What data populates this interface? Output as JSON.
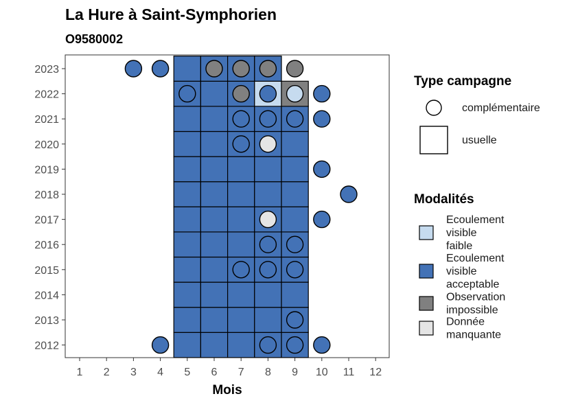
{
  "chart_data": {
    "type": "heatmap",
    "title": "La Hure à Saint-Symphorien",
    "subtitle": "O9580002",
    "xlabel": "Mois",
    "ylabel": "",
    "x_ticks": [
      "1",
      "2",
      "3",
      "4",
      "5",
      "6",
      "7",
      "8",
      "9",
      "10",
      "11",
      "12"
    ],
    "y_ticks": [
      "2012",
      "2013",
      "2014",
      "2015",
      "2016",
      "2017",
      "2018",
      "2019",
      "2020",
      "2021",
      "2022",
      "2023"
    ],
    "grid": false,
    "legend_position": "right",
    "colors": {
      "faible": "#c6dbef",
      "acceptable": "#4372b6",
      "impossible": "#808080",
      "manquante": "#e5e5e5"
    },
    "legend_type": {
      "title": "Type campagne",
      "items": [
        {
          "label": "complémentaire",
          "shape": "circle"
        },
        {
          "label": "usuelle",
          "shape": "square"
        }
      ]
    },
    "legend_modalites": {
      "title": "Modalités",
      "items": [
        {
          "key": "faible",
          "lines": [
            "Ecoulement",
            "visible",
            "faible"
          ]
        },
        {
          "key": "acceptable",
          "lines": [
            "Ecoulement",
            "visible",
            "acceptable"
          ]
        },
        {
          "key": "impossible",
          "lines": [
            "Observation",
            "impossible"
          ]
        },
        {
          "key": "manquante",
          "lines": [
            "Donnée",
            "manquante"
          ]
        }
      ]
    },
    "usuelle": [
      {
        "year": 2012,
        "month": 5,
        "mod": "acceptable"
      },
      {
        "year": 2012,
        "month": 6,
        "mod": "acceptable"
      },
      {
        "year": 2012,
        "month": 7,
        "mod": "acceptable"
      },
      {
        "year": 2012,
        "month": 8,
        "mod": "acceptable"
      },
      {
        "year": 2012,
        "month": 9,
        "mod": "acceptable"
      },
      {
        "year": 2013,
        "month": 5,
        "mod": "acceptable"
      },
      {
        "year": 2013,
        "month": 6,
        "mod": "acceptable"
      },
      {
        "year": 2013,
        "month": 7,
        "mod": "acceptable"
      },
      {
        "year": 2013,
        "month": 8,
        "mod": "acceptable"
      },
      {
        "year": 2013,
        "month": 9,
        "mod": "acceptable"
      },
      {
        "year": 2014,
        "month": 5,
        "mod": "acceptable"
      },
      {
        "year": 2014,
        "month": 6,
        "mod": "acceptable"
      },
      {
        "year": 2014,
        "month": 7,
        "mod": "acceptable"
      },
      {
        "year": 2014,
        "month": 8,
        "mod": "acceptable"
      },
      {
        "year": 2014,
        "month": 9,
        "mod": "acceptable"
      },
      {
        "year": 2015,
        "month": 5,
        "mod": "acceptable"
      },
      {
        "year": 2015,
        "month": 6,
        "mod": "acceptable"
      },
      {
        "year": 2015,
        "month": 7,
        "mod": "acceptable"
      },
      {
        "year": 2015,
        "month": 8,
        "mod": "acceptable"
      },
      {
        "year": 2015,
        "month": 9,
        "mod": "acceptable"
      },
      {
        "year": 2016,
        "month": 5,
        "mod": "acceptable"
      },
      {
        "year": 2016,
        "month": 6,
        "mod": "acceptable"
      },
      {
        "year": 2016,
        "month": 7,
        "mod": "acceptable"
      },
      {
        "year": 2016,
        "month": 8,
        "mod": "acceptable"
      },
      {
        "year": 2016,
        "month": 9,
        "mod": "acceptable"
      },
      {
        "year": 2017,
        "month": 5,
        "mod": "acceptable"
      },
      {
        "year": 2017,
        "month": 6,
        "mod": "acceptable"
      },
      {
        "year": 2017,
        "month": 7,
        "mod": "acceptable"
      },
      {
        "year": 2017,
        "month": 8,
        "mod": "acceptable"
      },
      {
        "year": 2017,
        "month": 9,
        "mod": "acceptable"
      },
      {
        "year": 2018,
        "month": 5,
        "mod": "acceptable"
      },
      {
        "year": 2018,
        "month": 6,
        "mod": "acceptable"
      },
      {
        "year": 2018,
        "month": 7,
        "mod": "acceptable"
      },
      {
        "year": 2018,
        "month": 8,
        "mod": "acceptable"
      },
      {
        "year": 2018,
        "month": 9,
        "mod": "acceptable"
      },
      {
        "year": 2019,
        "month": 5,
        "mod": "acceptable"
      },
      {
        "year": 2019,
        "month": 6,
        "mod": "acceptable"
      },
      {
        "year": 2019,
        "month": 7,
        "mod": "acceptable"
      },
      {
        "year": 2019,
        "month": 8,
        "mod": "acceptable"
      },
      {
        "year": 2019,
        "month": 9,
        "mod": "acceptable"
      },
      {
        "year": 2020,
        "month": 5,
        "mod": "acceptable"
      },
      {
        "year": 2020,
        "month": 6,
        "mod": "acceptable"
      },
      {
        "year": 2020,
        "month": 7,
        "mod": "acceptable"
      },
      {
        "year": 2020,
        "month": 8,
        "mod": "acceptable"
      },
      {
        "year": 2020,
        "month": 9,
        "mod": "acceptable"
      },
      {
        "year": 2021,
        "month": 5,
        "mod": "acceptable"
      },
      {
        "year": 2021,
        "month": 6,
        "mod": "acceptable"
      },
      {
        "year": 2021,
        "month": 7,
        "mod": "acceptable"
      },
      {
        "year": 2021,
        "month": 8,
        "mod": "acceptable"
      },
      {
        "year": 2021,
        "month": 9,
        "mod": "acceptable"
      },
      {
        "year": 2022,
        "month": 5,
        "mod": "acceptable"
      },
      {
        "year": 2022,
        "month": 6,
        "mod": "acceptable"
      },
      {
        "year": 2022,
        "month": 7,
        "mod": "acceptable"
      },
      {
        "year": 2022,
        "month": 8,
        "mod": "faible"
      },
      {
        "year": 2022,
        "month": 9,
        "mod": "impossible"
      },
      {
        "year": 2023,
        "month": 5,
        "mod": "acceptable"
      },
      {
        "year": 2023,
        "month": 6,
        "mod": "acceptable"
      },
      {
        "year": 2023,
        "month": 7,
        "mod": "acceptable"
      },
      {
        "year": 2023,
        "month": 8,
        "mod": "acceptable"
      }
    ],
    "complementaire": [
      {
        "year": 2023,
        "month": 3,
        "mod": "acceptable"
      },
      {
        "year": 2023,
        "month": 4,
        "mod": "acceptable"
      },
      {
        "year": 2023,
        "month": 6,
        "mod": "impossible"
      },
      {
        "year": 2023,
        "month": 7,
        "mod": "impossible"
      },
      {
        "year": 2023,
        "month": 8,
        "mod": "impossible"
      },
      {
        "year": 2023,
        "month": 9,
        "mod": "impossible"
      },
      {
        "year": 2022,
        "month": 5,
        "mod": "acceptable"
      },
      {
        "year": 2022,
        "month": 7,
        "mod": "impossible"
      },
      {
        "year": 2022,
        "month": 8,
        "mod": "acceptable"
      },
      {
        "year": 2022,
        "month": 9,
        "mod": "faible"
      },
      {
        "year": 2022,
        "month": 10,
        "mod": "acceptable"
      },
      {
        "year": 2021,
        "month": 7,
        "mod": "acceptable"
      },
      {
        "year": 2021,
        "month": 8,
        "mod": "acceptable"
      },
      {
        "year": 2021,
        "month": 9,
        "mod": "acceptable"
      },
      {
        "year": 2021,
        "month": 10,
        "mod": "acceptable"
      },
      {
        "year": 2020,
        "month": 7,
        "mod": "acceptable"
      },
      {
        "year": 2020,
        "month": 8,
        "mod": "manquante"
      },
      {
        "year": 2019,
        "month": 10,
        "mod": "acceptable"
      },
      {
        "year": 2018,
        "month": 11,
        "mod": "acceptable"
      },
      {
        "year": 2017,
        "month": 8,
        "mod": "manquante"
      },
      {
        "year": 2017,
        "month": 10,
        "mod": "acceptable"
      },
      {
        "year": 2016,
        "month": 8,
        "mod": "acceptable"
      },
      {
        "year": 2016,
        "month": 9,
        "mod": "acceptable"
      },
      {
        "year": 2015,
        "month": 7,
        "mod": "acceptable"
      },
      {
        "year": 2015,
        "month": 8,
        "mod": "acceptable"
      },
      {
        "year": 2015,
        "month": 9,
        "mod": "acceptable"
      },
      {
        "year": 2013,
        "month": 9,
        "mod": "acceptable"
      },
      {
        "year": 2012,
        "month": 4,
        "mod": "acceptable"
      },
      {
        "year": 2012,
        "month": 8,
        "mod": "acceptable"
      },
      {
        "year": 2012,
        "month": 9,
        "mod": "acceptable"
      },
      {
        "year": 2012,
        "month": 10,
        "mod": "acceptable"
      }
    ]
  }
}
